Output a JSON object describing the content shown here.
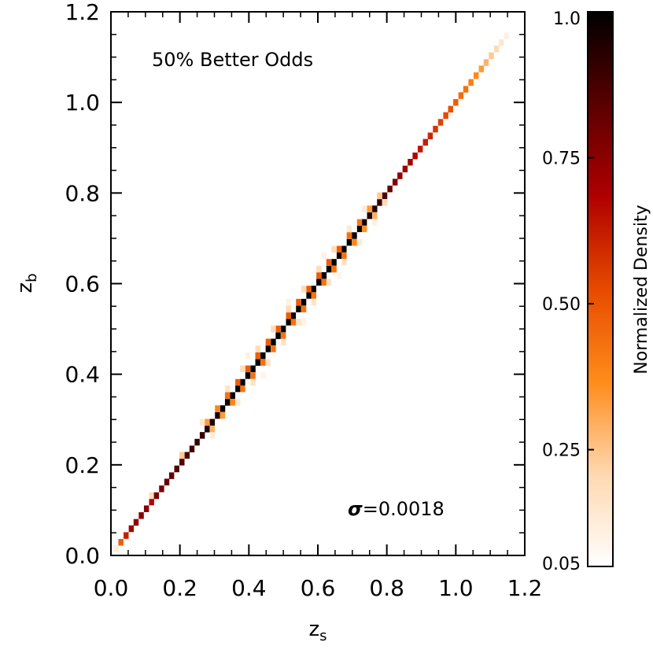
{
  "chart_data": [
    {
      "type": "heatmap",
      "title": "",
      "xlabel": "z",
      "xlabel_sub": "s",
      "ylabel": "z",
      "ylabel_sub": "b",
      "xlim": [
        0.0,
        1.2
      ],
      "ylim": [
        0.0,
        1.2
      ],
      "x_ticks": [
        "0.0",
        "0.2",
        "0.4",
        "0.6",
        "0.8",
        "1.0",
        "1.2"
      ],
      "y_ticks": [
        "0.0",
        "0.2",
        "0.4",
        "0.6",
        "0.8",
        "1.0",
        "1.2"
      ],
      "annotations": {
        "label": "50% Better Odds",
        "sigma_symbol": "σ",
        "sigma_value": "=0.0018"
      },
      "bin_size": 0.0147,
      "cells": [
        [
          0.015,
          0.015,
          0.08
        ],
        [
          0.029,
          0.029,
          0.45
        ],
        [
          0.044,
          0.044,
          0.6
        ],
        [
          0.059,
          0.059,
          0.7
        ],
        [
          0.073,
          0.073,
          0.72
        ],
        [
          0.088,
          0.088,
          0.75
        ],
        [
          0.103,
          0.103,
          0.75
        ],
        [
          0.118,
          0.118,
          0.65
        ],
        [
          0.118,
          0.132,
          0.15
        ],
        [
          0.132,
          0.132,
          0.78
        ],
        [
          0.147,
          0.147,
          0.78
        ],
        [
          0.162,
          0.162,
          0.82
        ],
        [
          0.176,
          0.176,
          0.82
        ],
        [
          0.191,
          0.191,
          0.85
        ],
        [
          0.206,
          0.206,
          0.85
        ],
        [
          0.206,
          0.221,
          0.2
        ],
        [
          0.221,
          0.221,
          0.88
        ],
        [
          0.235,
          0.235,
          0.88
        ],
        [
          0.25,
          0.25,
          0.9
        ],
        [
          0.265,
          0.265,
          0.9
        ],
        [
          0.279,
          0.279,
          0.95
        ],
        [
          0.294,
          0.294,
          0.95
        ],
        [
          0.309,
          0.309,
          0.95
        ],
        [
          0.324,
          0.324,
          0.98
        ],
        [
          0.338,
          0.338,
          0.97
        ],
        [
          0.353,
          0.353,
          0.98
        ],
        [
          0.368,
          0.368,
          0.99
        ],
        [
          0.382,
          0.382,
          0.99
        ],
        [
          0.397,
          0.397,
          1.0
        ],
        [
          0.412,
          0.412,
          1.0
        ],
        [
          0.426,
          0.426,
          1.0
        ],
        [
          0.441,
          0.441,
          1.0
        ],
        [
          0.456,
          0.456,
          1.0
        ],
        [
          0.471,
          0.471,
          1.0
        ],
        [
          0.485,
          0.485,
          1.0
        ],
        [
          0.5,
          0.5,
          1.0
        ],
        [
          0.515,
          0.515,
          1.0
        ],
        [
          0.529,
          0.529,
          1.0
        ],
        [
          0.544,
          0.544,
          1.0
        ],
        [
          0.559,
          0.559,
          1.0
        ],
        [
          0.574,
          0.574,
          1.0
        ],
        [
          0.588,
          0.588,
          1.0
        ],
        [
          0.603,
          0.603,
          1.0
        ],
        [
          0.618,
          0.618,
          1.0
        ],
        [
          0.632,
          0.632,
          1.0
        ],
        [
          0.647,
          0.647,
          1.0
        ],
        [
          0.662,
          0.662,
          1.0
        ],
        [
          0.676,
          0.676,
          1.0
        ],
        [
          0.691,
          0.691,
          1.0
        ],
        [
          0.706,
          0.706,
          0.98
        ],
        [
          0.721,
          0.721,
          0.98
        ],
        [
          0.735,
          0.735,
          0.97
        ],
        [
          0.75,
          0.75,
          0.95
        ],
        [
          0.765,
          0.765,
          0.93
        ],
        [
          0.779,
          0.779,
          0.9
        ],
        [
          0.794,
          0.794,
          0.85
        ],
        [
          0.809,
          0.809,
          0.8
        ],
        [
          0.824,
          0.824,
          0.75
        ],
        [
          0.838,
          0.838,
          0.72
        ],
        [
          0.853,
          0.853,
          0.7
        ],
        [
          0.868,
          0.868,
          0.68
        ],
        [
          0.882,
          0.882,
          0.66
        ],
        [
          0.897,
          0.897,
          0.62
        ],
        [
          0.912,
          0.912,
          0.6
        ],
        [
          0.926,
          0.926,
          0.58
        ],
        [
          0.941,
          0.941,
          0.55
        ],
        [
          0.956,
          0.956,
          0.52
        ],
        [
          0.971,
          0.971,
          0.5
        ],
        [
          0.985,
          0.985,
          0.48
        ],
        [
          1.0,
          1.0,
          0.45
        ],
        [
          1.015,
          1.015,
          0.42
        ],
        [
          1.029,
          1.029,
          0.4
        ],
        [
          1.044,
          1.044,
          0.37
        ],
        [
          1.059,
          1.059,
          0.34
        ],
        [
          1.074,
          1.074,
          0.3
        ],
        [
          1.088,
          1.088,
          0.25
        ],
        [
          1.103,
          1.103,
          0.2
        ],
        [
          1.118,
          1.118,
          0.16
        ],
        [
          1.132,
          1.132,
          0.1
        ],
        [
          1.147,
          1.147,
          0.06
        ],
        [
          0.279,
          0.294,
          0.3
        ],
        [
          0.294,
          0.279,
          0.25
        ],
        [
          0.309,
          0.324,
          0.35
        ],
        [
          0.324,
          0.309,
          0.3
        ],
        [
          0.338,
          0.353,
          0.4
        ],
        [
          0.353,
          0.338,
          0.35
        ],
        [
          0.368,
          0.382,
          0.45
        ],
        [
          0.382,
          0.368,
          0.4
        ],
        [
          0.397,
          0.412,
          0.45
        ],
        [
          0.412,
          0.397,
          0.4
        ],
        [
          0.426,
          0.441,
          0.45
        ],
        [
          0.441,
          0.426,
          0.4
        ],
        [
          0.456,
          0.471,
          0.45
        ],
        [
          0.471,
          0.456,
          0.4
        ],
        [
          0.485,
          0.5,
          0.45
        ],
        [
          0.5,
          0.485,
          0.4
        ],
        [
          0.515,
          0.529,
          0.45
        ],
        [
          0.529,
          0.515,
          0.4
        ],
        [
          0.544,
          0.559,
          0.45
        ],
        [
          0.559,
          0.544,
          0.4
        ],
        [
          0.574,
          0.588,
          0.45
        ],
        [
          0.588,
          0.574,
          0.4
        ],
        [
          0.603,
          0.618,
          0.45
        ],
        [
          0.618,
          0.603,
          0.4
        ],
        [
          0.632,
          0.647,
          0.45
        ],
        [
          0.647,
          0.632,
          0.4
        ],
        [
          0.662,
          0.676,
          0.45
        ],
        [
          0.676,
          0.662,
          0.4
        ],
        [
          0.691,
          0.706,
          0.4
        ],
        [
          0.706,
          0.691,
          0.35
        ],
        [
          0.721,
          0.735,
          0.38
        ],
        [
          0.735,
          0.721,
          0.32
        ],
        [
          0.75,
          0.765,
          0.3
        ],
        [
          0.765,
          0.75,
          0.25
        ],
        [
          0.779,
          0.794,
          0.2
        ],
        [
          0.794,
          0.779,
          0.15
        ],
        [
          0.265,
          0.294,
          0.1
        ],
        [
          0.294,
          0.265,
          0.08
        ],
        [
          0.338,
          0.368,
          0.12
        ],
        [
          0.368,
          0.338,
          0.1
        ],
        [
          0.382,
          0.412,
          0.15
        ],
        [
          0.412,
          0.382,
          0.12
        ],
        [
          0.426,
          0.456,
          0.15
        ],
        [
          0.456,
          0.426,
          0.12
        ],
        [
          0.471,
          0.5,
          0.15
        ],
        [
          0.5,
          0.471,
          0.12
        ],
        [
          0.515,
          0.544,
          0.15
        ],
        [
          0.544,
          0.515,
          0.12
        ],
        [
          0.559,
          0.588,
          0.15
        ],
        [
          0.588,
          0.559,
          0.12
        ],
        [
          0.603,
          0.632,
          0.15
        ],
        [
          0.632,
          0.603,
          0.12
        ],
        [
          0.647,
          0.676,
          0.15
        ],
        [
          0.676,
          0.647,
          0.12
        ],
        [
          0.691,
          0.721,
          0.1
        ],
        [
          0.721,
          0.691,
          0.08
        ],
        [
          0.735,
          0.765,
          0.08
        ],
        [
          0.765,
          0.735,
          0.06
        ],
        [
          0.397,
          0.441,
          0.06
        ],
        [
          0.441,
          0.397,
          0.05
        ],
        [
          0.515,
          0.559,
          0.06
        ],
        [
          0.559,
          0.515,
          0.05
        ],
        [
          0.618,
          0.662,
          0.06
        ],
        [
          0.662,
          0.618,
          0.05
        ]
      ]
    },
    {
      "type": "colorbar",
      "label": "Normalized Density",
      "range": [
        0.05,
        1.0
      ],
      "ticks": [
        "0.05",
        "0.25",
        "0.50",
        "0.75",
        "1.0"
      ],
      "tick_values": [
        0.05,
        0.25,
        0.5,
        0.75,
        1.0
      ],
      "colors": [
        "#ffffff",
        "#ffd8b0",
        "#ff8c1a",
        "#e64a00",
        "#b00000",
        "#5a0000",
        "#000000"
      ]
    }
  ]
}
